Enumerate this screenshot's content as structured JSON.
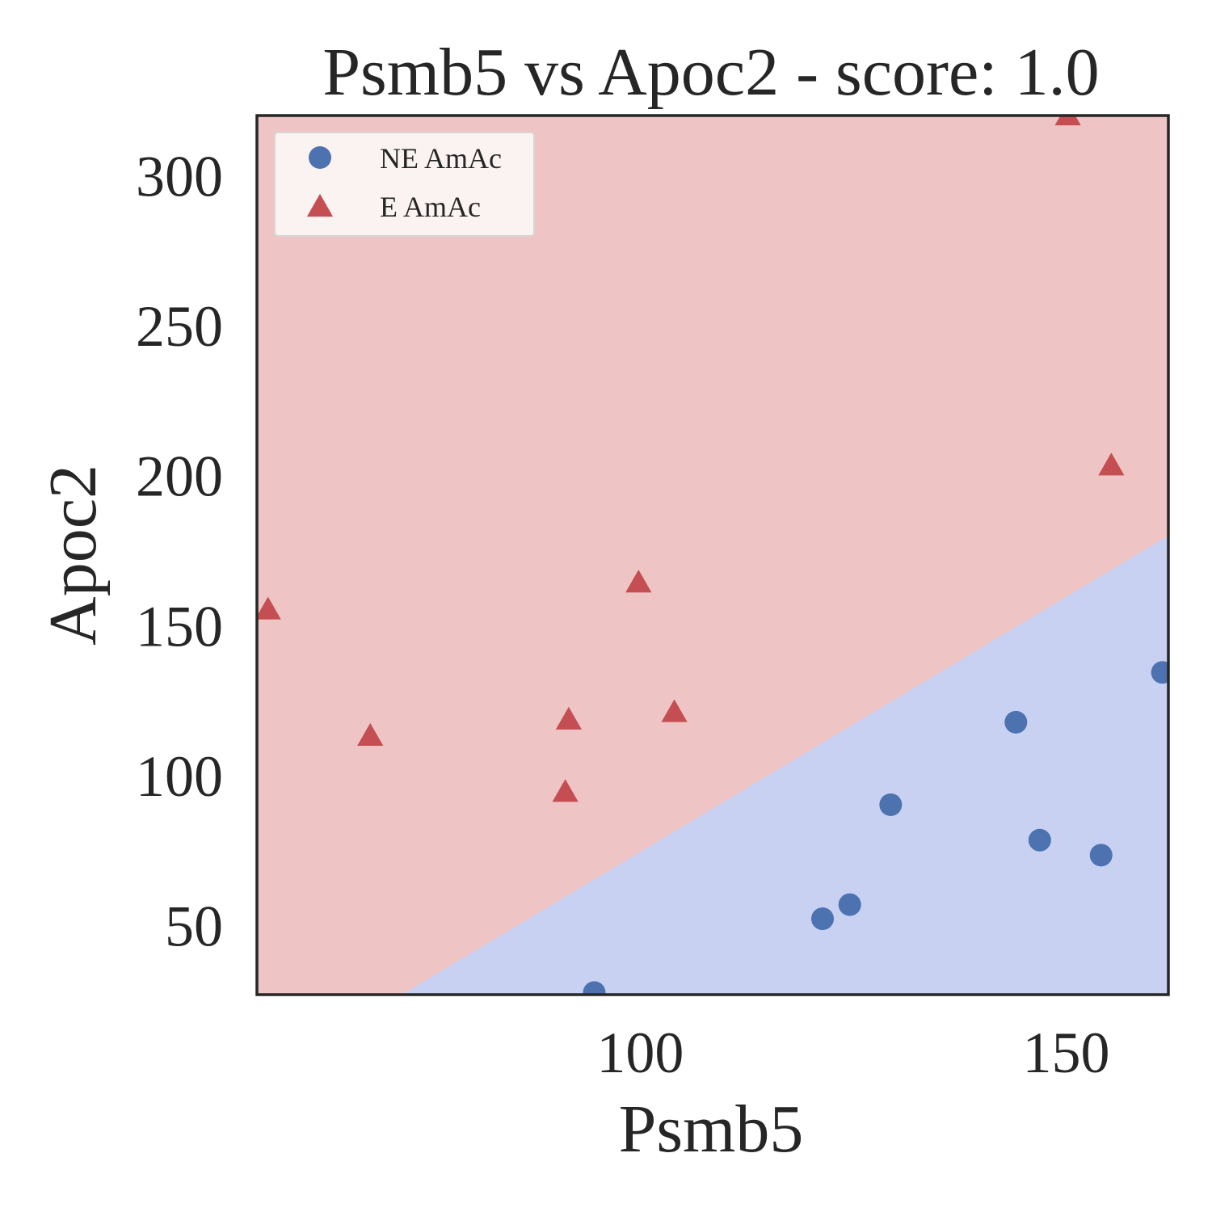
{
  "chart_data": {
    "type": "scatter",
    "title": "Psmb5 vs Apoc2 - score: 1.0",
    "xlabel": "Psmb5",
    "ylabel": "Apoc2",
    "xlim": [
      55,
      162
    ],
    "ylim": [
      27,
      320
    ],
    "xticks": [
      100,
      150
    ],
    "yticks": [
      50,
      100,
      150,
      200,
      250,
      300
    ],
    "grid": false,
    "legend_position": "top-left",
    "decision_boundary": {
      "points": [
        [
          72,
          27
        ],
        [
          162,
          180
        ]
      ],
      "region_below_color": "#c9d1f2",
      "region_above_color": "#eec5c4"
    },
    "series": [
      {
        "name": "NE AmAc",
        "marker": "circle",
        "color": "#4c72b0",
        "points": [
          [
            94.6,
            27.7
          ],
          [
            121.4,
            52.3
          ],
          [
            124.6,
            57.0
          ],
          [
            129.4,
            90.3
          ],
          [
            144.1,
            117.8
          ],
          [
            146.9,
            78.5
          ],
          [
            154.1,
            73.5
          ],
          [
            161.3,
            134.4
          ]
        ]
      },
      {
        "name": "E AmAc",
        "marker": "triangle",
        "color": "#c44e52",
        "points": [
          [
            56.3,
            155.3
          ],
          [
            68.3,
            113.2
          ],
          [
            91.6,
            118.6
          ],
          [
            91.2,
            94.5
          ],
          [
            99.8,
            164.3
          ],
          [
            104.0,
            121.1
          ],
          [
            150.2,
            320.0
          ],
          [
            155.3,
            203.3
          ]
        ]
      }
    ]
  }
}
